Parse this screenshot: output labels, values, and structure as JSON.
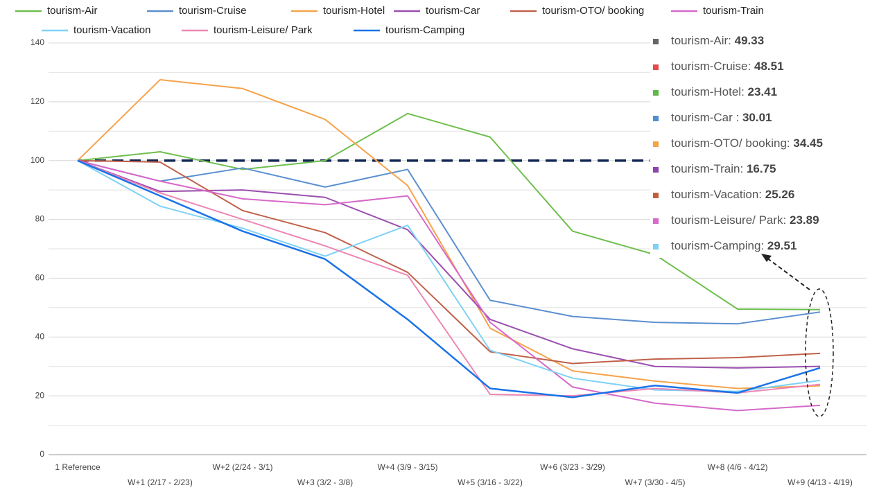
{
  "chart_data": {
    "type": "line",
    "categories": [
      "1 Reference",
      "W+1 (2/17 - 2/23)",
      "W+2 (2/24 - 3/1)",
      "W+3 (3/2 - 3/8)",
      "W+4 (3/9 - 3/15)",
      "W+5 (3/16 - 3/22)",
      "W+6 (3/23 - 3/29)",
      "W+7 (3/30 - 4/5)",
      "W+8 (4/6 - 4/12)",
      "W+9 (4/13 - 4/19)"
    ],
    "ylim": [
      0,
      140
    ],
    "yticks": [
      0,
      20,
      40,
      60,
      80,
      100,
      120,
      140
    ],
    "minor_yticks": [
      10,
      30,
      50,
      70,
      90,
      110,
      130
    ],
    "grid": true,
    "reference_line": 100,
    "series": [
      {
        "name": "tourism-Air",
        "color": "#6ebf4e",
        "values": [
          100,
          103,
          97,
          100,
          116,
          108,
          76,
          68,
          49.5,
          49.33
        ]
      },
      {
        "name": "tourism-Cruise",
        "color": "#5b8fd0",
        "values": [
          100,
          93,
          97.5,
          91,
          97,
          52.5,
          47,
          45,
          44.5,
          48.51
        ]
      },
      {
        "name": "tourism-Hotel",
        "color": "#f6a34b",
        "values": [
          100,
          127.5,
          124.5,
          114,
          91.5,
          43,
          28.5,
          25,
          22.5,
          23.41
        ]
      },
      {
        "name": "tourism-Car",
        "color": "#9b4fb0",
        "values": [
          100,
          89.5,
          90,
          87.5,
          76.5,
          46,
          36,
          30,
          29.5,
          30.01
        ]
      },
      {
        "name": "tourism-OTO/ booking",
        "color": "#c0614a",
        "values": [
          100,
          99.5,
          83,
          75.5,
          62,
          35,
          31,
          32.5,
          33,
          34.45
        ]
      },
      {
        "name": "tourism-Train",
        "color": "#d669c9",
        "values": [
          100,
          93,
          87,
          85,
          88,
          45,
          23,
          17.5,
          15,
          16.75
        ]
      },
      {
        "name": "tourism-Vacation",
        "color": "#7fd1f5",
        "values": [
          100,
          84.5,
          77,
          67.5,
          78,
          35.5,
          26,
          22,
          21.5,
          25.26
        ]
      },
      {
        "name": "tourism-Leisure/ Park",
        "color": "#ee87b4",
        "values": [
          100,
          89,
          80,
          71,
          61,
          20.5,
          20,
          22.5,
          21,
          23.89
        ]
      },
      {
        "name": "tourism-Camping",
        "color": "#1a73e8",
        "values": [
          100,
          88,
          76,
          66.5,
          46,
          22.5,
          19.5,
          23.5,
          21,
          29.51
        ]
      }
    ],
    "annotations": [
      {
        "label": "tourism-Air:",
        "value": 49.33,
        "color": "#666666"
      },
      {
        "label": "tourism-Cruise:",
        "value": 48.51,
        "color": "#e64b4b"
      },
      {
        "label": "tourism-Hotel:",
        "value": 23.41,
        "color": "#5fb848"
      },
      {
        "label": "tourism-Car :",
        "value": 30.01,
        "color": "#4f8fd0"
      },
      {
        "label": "tourism-OTO/ booking:",
        "value": 34.45,
        "color": "#f5a442"
      },
      {
        "label": "tourism-Train:",
        "value": 16.75,
        "color": "#8e44ad"
      },
      {
        "label": "tourism-Vacation:",
        "value": 25.26,
        "color": "#c2603e"
      },
      {
        "label": "tourism-Leisure/ Park:",
        "value": 23.89,
        "color": "#d669c9"
      },
      {
        "label": "tourism-Camping:",
        "value": 29.51,
        "color": "#7fd1f5"
      }
    ]
  }
}
